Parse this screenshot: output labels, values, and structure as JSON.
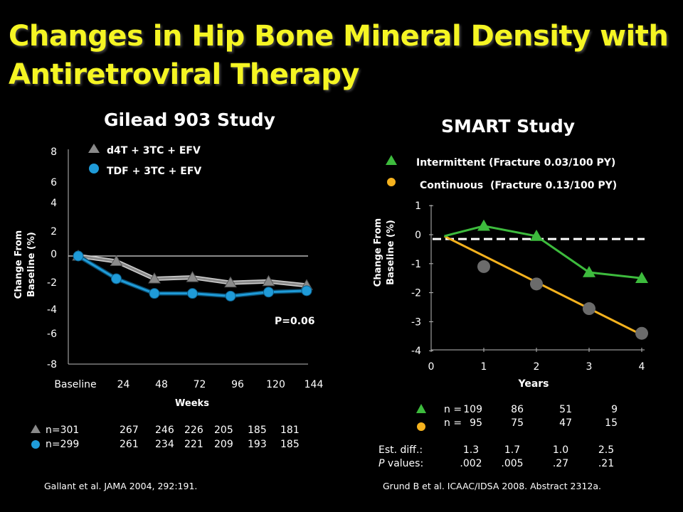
{
  "slide": {
    "title": "Changes in Hip Bone Mineral Density with Antiretroviral Therapy",
    "left_citation": "Gallant et al. JAMA 2004, 292:191.",
    "right_citation": "Grund B et al. ICAAC/IDSA 2008. Abstract 2312a."
  },
  "colors": {
    "title": "#f5f523",
    "gray_series": "#8a8a8a",
    "blue_series": "#1f9bd8",
    "green_series": "#3dbb3d",
    "orange_series": "#f5b21e",
    "gray_marker": "#6b6b6b"
  },
  "chart_data": [
    {
      "type": "line",
      "title": "Gilead 903 Study",
      "xlabel": "Weeks",
      "ylabel": "Change From Baseline (%)",
      "categories": [
        "Baseline",
        "24",
        "48",
        "72",
        "96",
        "120",
        "144"
      ],
      "yticks": [
        "8",
        "6",
        "4",
        "2",
        "0",
        "-2",
        "-4",
        "-6",
        "-8"
      ],
      "ylim": [
        -8,
        8
      ],
      "series": [
        {
          "name": "d4T + 3TC + EFV",
          "marker": "triangle",
          "values": [
            0,
            -0.4,
            -1.7,
            -1.6,
            -2.0,
            -1.9,
            -2.2
          ]
        },
        {
          "name": "TDF + 3TC + EFV",
          "marker": "circle",
          "values": [
            0,
            -1.7,
            -2.8,
            -2.8,
            -3.0,
            -2.7,
            -2.6
          ]
        }
      ],
      "annotation": "P=0.06",
      "n_rows": [
        {
          "marker": "triangle",
          "label": "n=301",
          "values": [
            "267",
            "246",
            "226",
            "205",
            "185",
            "181"
          ]
        },
        {
          "marker": "circle",
          "label": "n=299",
          "values": [
            "261",
            "234",
            "221",
            "209",
            "193",
            "185"
          ]
        }
      ]
    },
    {
      "type": "line",
      "title": "SMART Study",
      "xlabel": "Years",
      "ylabel": "Change From Baseline (%)",
      "x": [
        0,
        1,
        2,
        3,
        4
      ],
      "xticks": [
        "0",
        "1",
        "2",
        "3",
        "4"
      ],
      "yticks": [
        "1",
        "0",
        "-1",
        "-2",
        "-3",
        "-4"
      ],
      "ylim": [
        -4,
        1
      ],
      "reference_line": -0.15,
      "series": [
        {
          "name": "Intermittent (Fracture 0.03/100 PY)",
          "marker": "triangle",
          "x": [
            1,
            2,
            3,
            4
          ],
          "values": [
            0.3,
            -0.05,
            -1.3,
            -1.5
          ]
        },
        {
          "name": "Continuous  (Fracture 0.13/100 PY)",
          "marker": "circle",
          "x": [
            1,
            2,
            3,
            4
          ],
          "values": [
            -1.1,
            -1.7,
            -2.55,
            -3.4
          ]
        }
      ],
      "trend_lines": [
        {
          "series": "Intermittent (Fracture 0.03/100 PY)",
          "x": [
            0.25,
            1,
            2,
            3,
            4
          ],
          "values": [
            -0.05,
            0.3,
            -0.05,
            -1.3,
            -1.5
          ]
        },
        {
          "series": "Continuous  (Fracture 0.13/100 PY)",
          "x": [
            0.25,
            4
          ],
          "values": [
            -0.05,
            -3.45
          ]
        }
      ],
      "table": {
        "n_label_1": "n =",
        "n_row_1": [
          "109",
          "86",
          "51",
          "9"
        ],
        "n_label_2": "n =",
        "n_row_2": [
          "95",
          "75",
          "47",
          "15"
        ],
        "diff_label": "Est. diff.:",
        "diff_values": [
          "1.3",
          "1.7",
          "1.0",
          "2.5"
        ],
        "p_label_italic": "P",
        "p_label_rest": " values:",
        "p_values": [
          ".002",
          ".005",
          ".27",
          ".21"
        ]
      }
    }
  ]
}
